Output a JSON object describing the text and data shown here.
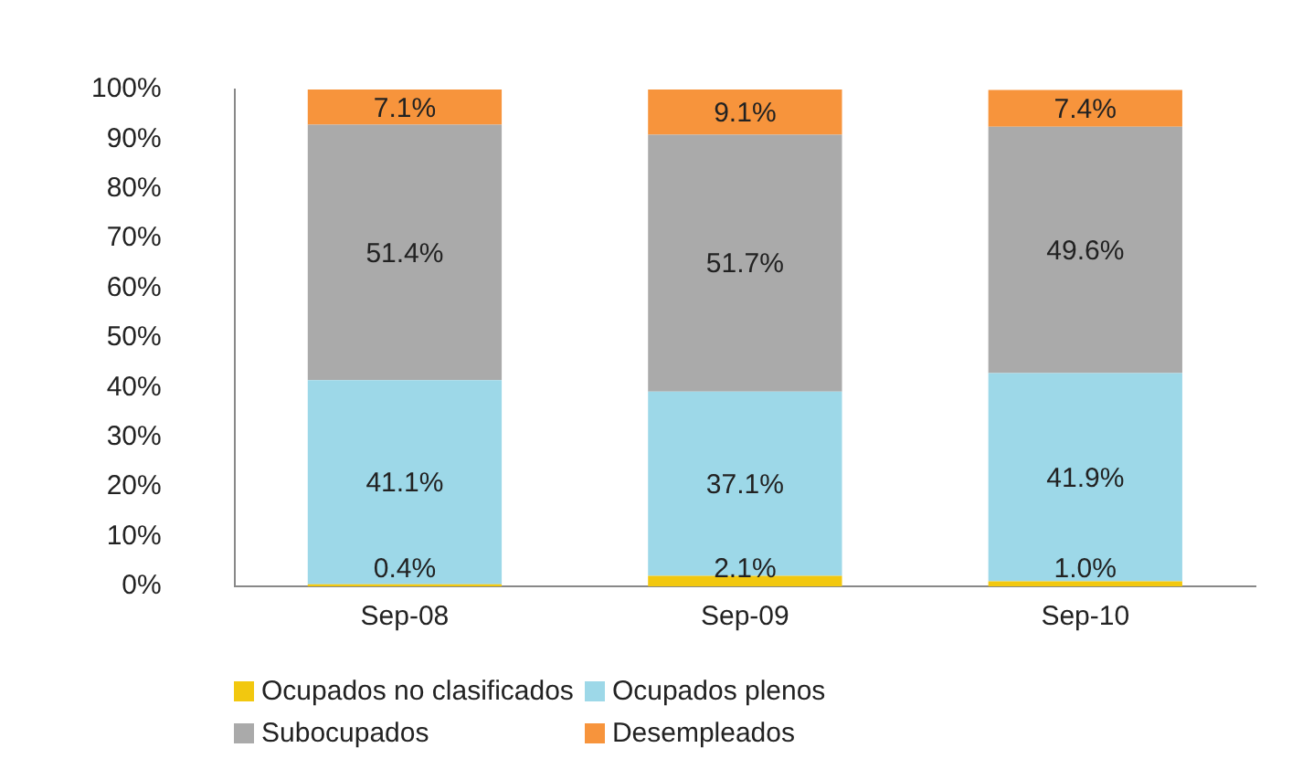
{
  "chart_data": {
    "type": "bar",
    "stacked": true,
    "categories": [
      "Sep-08",
      "Sep-09",
      "Sep-10"
    ],
    "series": [
      {
        "name": "Ocupados no clasificados",
        "color": "#f2c80f",
        "values": [
          0.4,
          2.1,
          1.0
        ],
        "value_labels": [
          "0.4%",
          "2.1%",
          "1.0%"
        ]
      },
      {
        "name": "Ocupados plenos",
        "color": "#9dd8e8",
        "values": [
          41.1,
          37.1,
          41.9
        ],
        "value_labels": [
          "41.1%",
          "37.1%",
          "41.9%"
        ]
      },
      {
        "name": "Subocupados",
        "color": "#aaaaaa",
        "values": [
          51.4,
          51.7,
          49.6
        ],
        "value_labels": [
          "51.4%",
          "51.7%",
          "49.6%"
        ]
      },
      {
        "name": "Desempleados",
        "color": "#f7943c",
        "values": [
          7.1,
          9.1,
          7.4
        ],
        "value_labels": [
          "7.1%",
          "9.1%",
          "7.4%"
        ]
      }
    ],
    "ylim": [
      0,
      100
    ],
    "yticks": [
      {
        "value": 0,
        "label": "0%"
      },
      {
        "value": 10,
        "label": "10%"
      },
      {
        "value": 20,
        "label": "20%"
      },
      {
        "value": 30,
        "label": "30%"
      },
      {
        "value": 40,
        "label": "40%"
      },
      {
        "value": 50,
        "label": "50%"
      },
      {
        "value": 60,
        "label": "60%"
      },
      {
        "value": 70,
        "label": "70%"
      },
      {
        "value": 80,
        "label": "80%"
      },
      {
        "value": 90,
        "label": "90%"
      },
      {
        "value": 100,
        "label": "100%"
      }
    ],
    "grid": false,
    "legend": "bottom"
  }
}
